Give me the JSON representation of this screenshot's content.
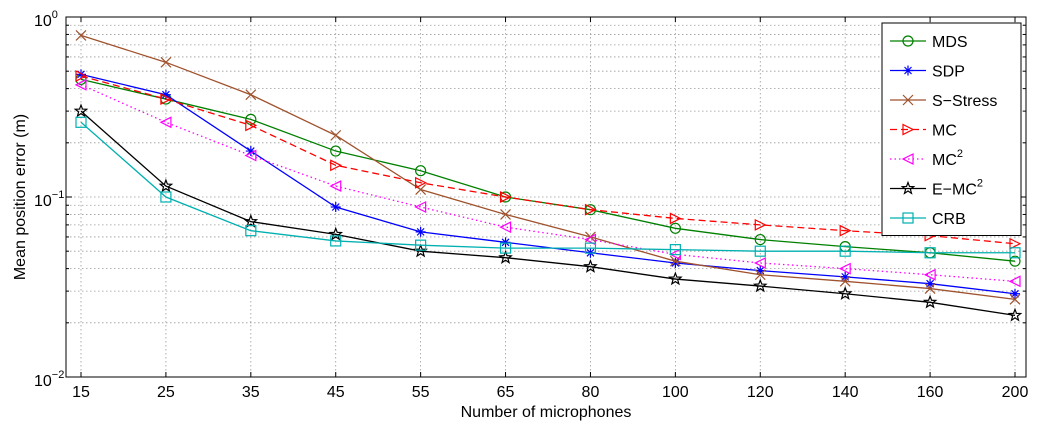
{
  "chart_data": {
    "type": "line",
    "title": "",
    "xlabel": "Number of microphones",
    "ylabel": "Mean position error (m)",
    "y_scale": "log",
    "ylim": [
      0.01,
      1
    ],
    "grid": true,
    "legend_position": "top-right",
    "categories": [
      "15",
      "25",
      "35",
      "45",
      "55",
      "65",
      "80",
      "100",
      "120",
      "140",
      "160",
      "200"
    ],
    "y_ticks": [
      {
        "value": 0.01,
        "base": "10",
        "exp": "−2"
      },
      {
        "value": 0.1,
        "base": "10",
        "exp": "−1"
      },
      {
        "value": 1,
        "base": "10",
        "exp": "0"
      }
    ],
    "series": [
      {
        "name": "MDS",
        "sup": "",
        "color": "#008000",
        "dash": "solid",
        "marker": "circle",
        "values": [
          0.45,
          0.35,
          0.27,
          0.18,
          0.14,
          0.1,
          0.085,
          0.067,
          0.058,
          0.053,
          0.049,
          0.044
        ]
      },
      {
        "name": "SDP",
        "sup": "",
        "color": "#0000ff",
        "dash": "solid",
        "marker": "asterisk",
        "values": [
          0.48,
          0.37,
          0.18,
          0.088,
          0.064,
          0.056,
          0.049,
          0.043,
          0.039,
          0.036,
          0.033,
          0.029
        ]
      },
      {
        "name": "S−Stress",
        "sup": "",
        "color": "#a0522d",
        "dash": "solid",
        "marker": "x",
        "values": [
          0.79,
          0.56,
          0.37,
          0.22,
          0.11,
          0.08,
          0.06,
          0.044,
          0.037,
          0.034,
          0.031,
          0.027
        ]
      },
      {
        "name": "MC",
        "sup": "",
        "color": "#ff0000",
        "dash": "dashed",
        "marker": "triangle-right",
        "values": [
          0.47,
          0.35,
          0.25,
          0.15,
          0.12,
          0.1,
          0.085,
          0.076,
          0.07,
          0.065,
          0.061,
          0.055
        ]
      },
      {
        "name": "MC",
        "sup": "2",
        "color": "#ff00ff",
        "dash": "dotted",
        "marker": "triangle-left",
        "values": [
          0.42,
          0.26,
          0.17,
          0.115,
          0.088,
          0.068,
          0.058,
          0.048,
          0.043,
          0.04,
          0.037,
          0.034
        ]
      },
      {
        "name": "E−MC",
        "sup": "2",
        "color": "#000000",
        "dash": "solid",
        "marker": "star",
        "values": [
          0.3,
          0.115,
          0.073,
          0.062,
          0.05,
          0.046,
          0.041,
          0.035,
          0.032,
          0.029,
          0.026,
          0.022
        ]
      },
      {
        "name": "CRB",
        "sup": "",
        "color": "#00b0b0",
        "dash": "solid",
        "marker": "square",
        "values": [
          0.26,
          0.1,
          0.065,
          0.057,
          0.054,
          0.052,
          0.052,
          0.051,
          0.05,
          0.05,
          0.049,
          0.049
        ]
      }
    ]
  }
}
